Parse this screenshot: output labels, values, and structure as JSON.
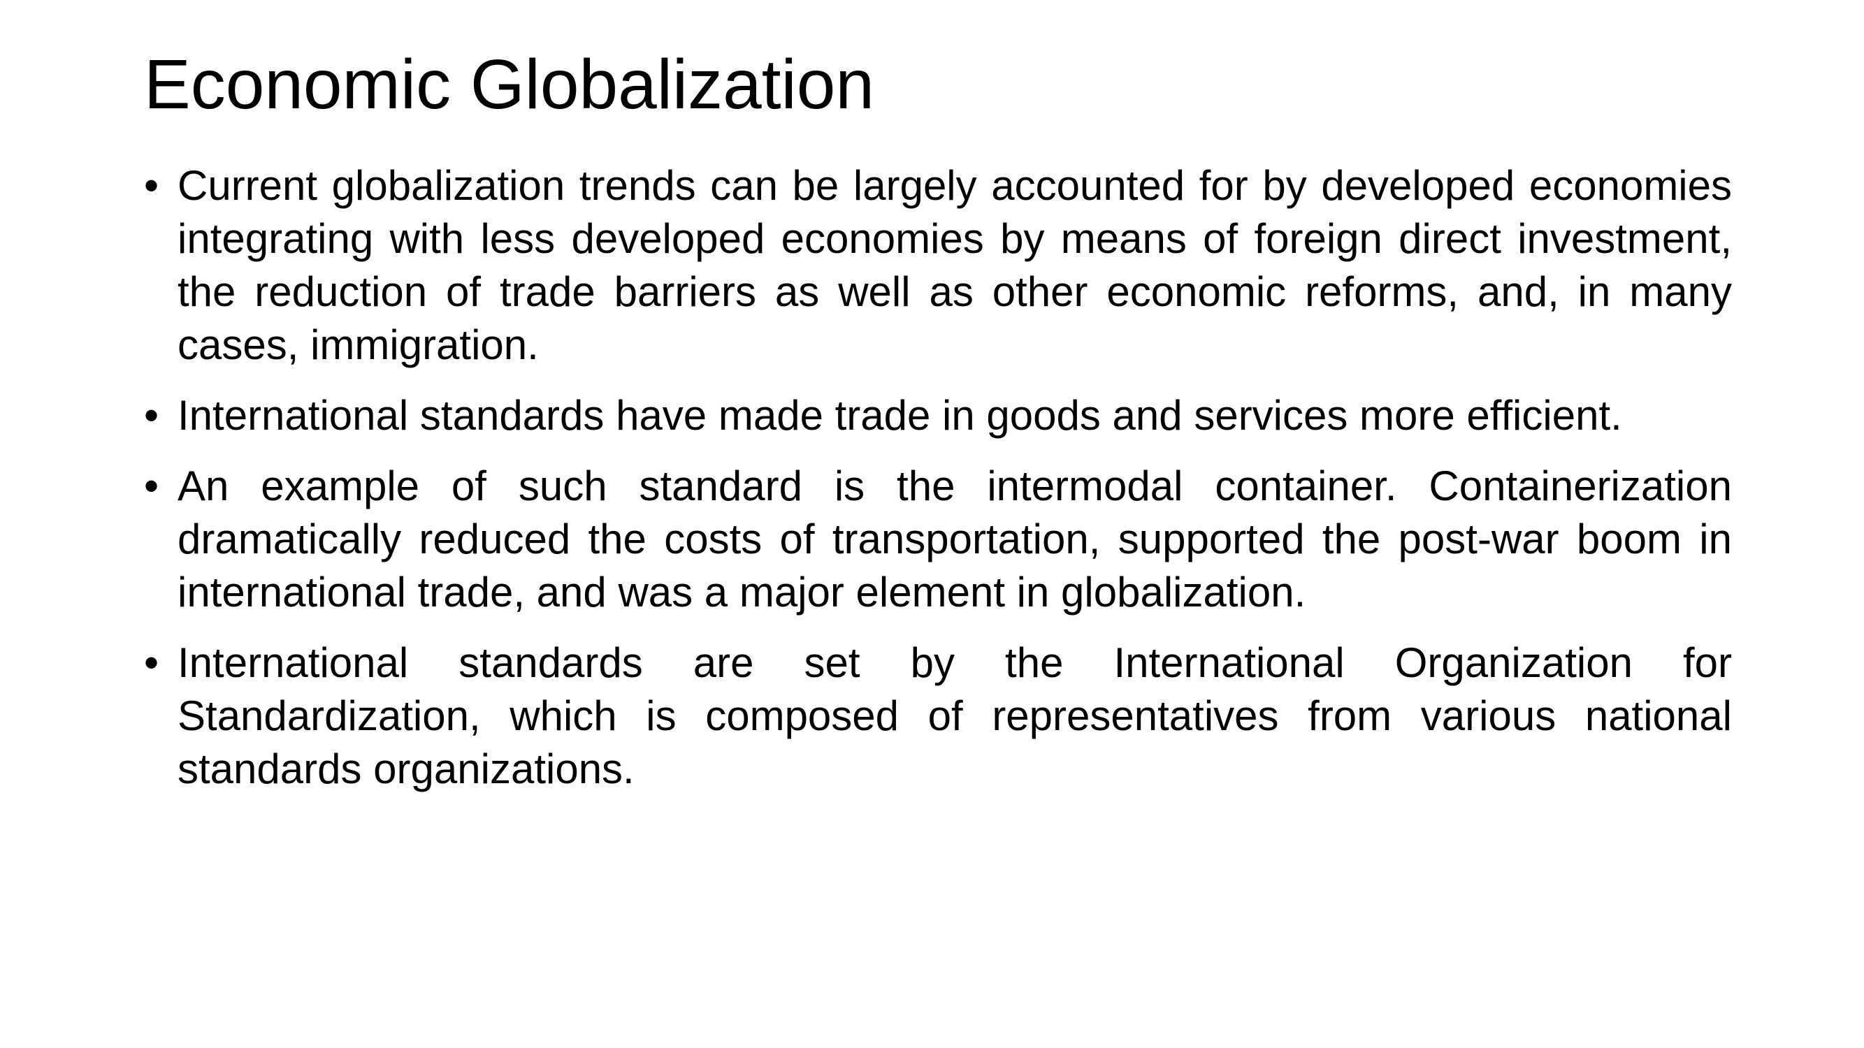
{
  "slide": {
    "title": "Economic Globalization",
    "bullet_glyph": "•",
    "bullets": [
      {
        "text": "Current globalization trends can be largely accounted for by developed economies integrating with less developed economies by means of foreign direct investment, the reduction of trade barriers as well as other economic reforms, and, in many cases, immigration."
      },
      {
        "text": "International standards have made trade in goods and services more efficient."
      },
      {
        "text": "An example of such standard is the intermodal container. Containerization dramatically reduced the costs of transportation, supported the post-war boom in international trade, and was a major element in globalization."
      },
      {
        "text": "International standards are set by the International Organization for Standardization, which is composed of representatives from various national standards organizations."
      }
    ]
  }
}
